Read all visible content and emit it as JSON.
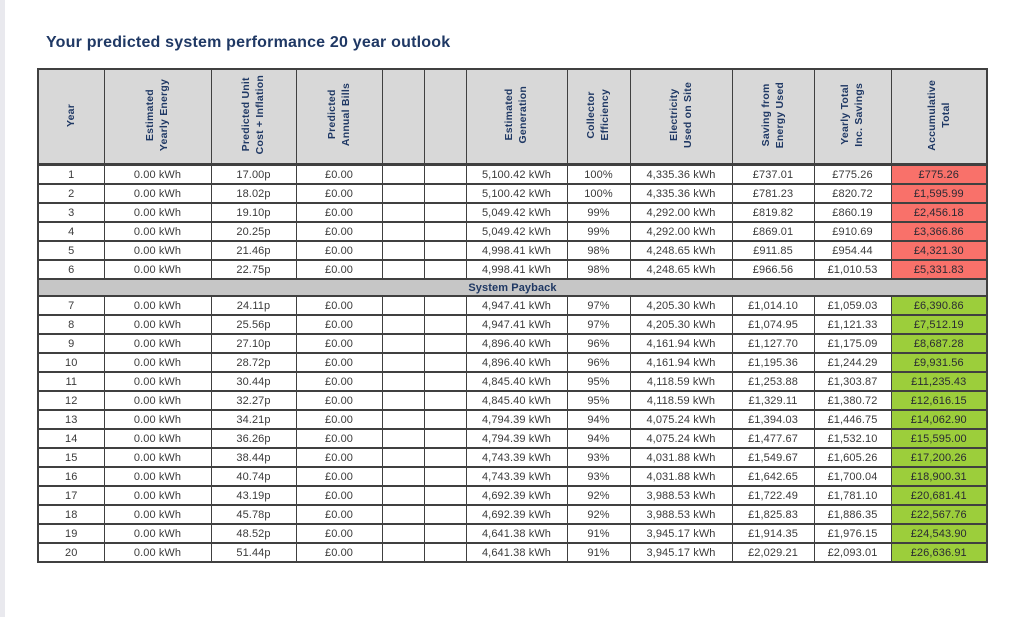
{
  "page": {
    "title": "Your predicted system performance 20 year outlook"
  },
  "colors": {
    "accent_navy": "#1f3864",
    "header_bg": "#d8d8d8",
    "payback_bg": "#c6c6c6",
    "negative_bg": "#f9716a",
    "positive_bg": "#9cce3b",
    "grid": "#404040"
  },
  "table": {
    "columns": [
      {
        "key": "year",
        "label": "Year"
      },
      {
        "key": "estimated-yearly-energy",
        "label": "Estimated\nYearly Energy"
      },
      {
        "key": "predicted-unit-cost-inflation",
        "label": "Predicted Unit\nCost + Inflation"
      },
      {
        "key": "predicted-annual-bills",
        "label": "Predicted\nAnnual Bills"
      },
      {
        "key": "spacer-1",
        "label": ""
      },
      {
        "key": "spacer-2",
        "label": ""
      },
      {
        "key": "estimated-generation",
        "label": "Estimated\nGeneration"
      },
      {
        "key": "collector-efficiency",
        "label": "Collector\nEfficiency"
      },
      {
        "key": "electricity-used-on-site",
        "label": "Electricity\nUsed on Site"
      },
      {
        "key": "saving-from-energy-used",
        "label": "Saving from\nEnergy Used"
      },
      {
        "key": "yearly-total-inc-savings",
        "label": "Yearly Total\nInc. Savings"
      },
      {
        "key": "accumulative-total",
        "label": "Accumulative\nTotal"
      }
    ],
    "payback_label": "System Payback",
    "payback_after_rows": 6,
    "rows": [
      {
        "status": "negative",
        "cells": [
          "1",
          "0.00 kWh",
          "17.00p",
          "£0.00",
          "",
          "",
          "5,100.42 kWh",
          "100%",
          "4,335.36 kWh",
          "£737.01",
          "£775.26",
          "£775.26"
        ]
      },
      {
        "status": "negative",
        "cells": [
          "2",
          "0.00 kWh",
          "18.02p",
          "£0.00",
          "",
          "",
          "5,100.42 kWh",
          "100%",
          "4,335.36 kWh",
          "£781.23",
          "£820.72",
          "£1,595.99"
        ]
      },
      {
        "status": "negative",
        "cells": [
          "3",
          "0.00 kWh",
          "19.10p",
          "£0.00",
          "",
          "",
          "5,049.42 kWh",
          "99%",
          "4,292.00 kWh",
          "£819.82",
          "£860.19",
          "£2,456.18"
        ]
      },
      {
        "status": "negative",
        "cells": [
          "4",
          "0.00 kWh",
          "20.25p",
          "£0.00",
          "",
          "",
          "5,049.42 kWh",
          "99%",
          "4,292.00 kWh",
          "£869.01",
          "£910.69",
          "£3,366.86"
        ]
      },
      {
        "status": "negative",
        "cells": [
          "5",
          "0.00 kWh",
          "21.46p",
          "£0.00",
          "",
          "",
          "4,998.41 kWh",
          "98%",
          "4,248.65 kWh",
          "£911.85",
          "£954.44",
          "£4,321.30"
        ]
      },
      {
        "status": "negative",
        "cells": [
          "6",
          "0.00 kWh",
          "22.75p",
          "£0.00",
          "",
          "",
          "4,998.41 kWh",
          "98%",
          "4,248.65 kWh",
          "£966.56",
          "£1,010.53",
          "£5,331.83"
        ]
      },
      {
        "status": "positive",
        "cells": [
          "7",
          "0.00 kWh",
          "24.11p",
          "£0.00",
          "",
          "",
          "4,947.41 kWh",
          "97%",
          "4,205.30 kWh",
          "£1,014.10",
          "£1,059.03",
          "£6,390.86"
        ]
      },
      {
        "status": "positive",
        "cells": [
          "8",
          "0.00 kWh",
          "25.56p",
          "£0.00",
          "",
          "",
          "4,947.41 kWh",
          "97%",
          "4,205.30 kWh",
          "£1,074.95",
          "£1,121.33",
          "£7,512.19"
        ]
      },
      {
        "status": "positive",
        "cells": [
          "9",
          "0.00 kWh",
          "27.10p",
          "£0.00",
          "",
          "",
          "4,896.40 kWh",
          "96%",
          "4,161.94 kWh",
          "£1,127.70",
          "£1,175.09",
          "£8,687.28"
        ]
      },
      {
        "status": "positive",
        "cells": [
          "10",
          "0.00 kWh",
          "28.72p",
          "£0.00",
          "",
          "",
          "4,896.40 kWh",
          "96%",
          "4,161.94 kWh",
          "£1,195.36",
          "£1,244.29",
          "£9,931.56"
        ]
      },
      {
        "status": "positive",
        "cells": [
          "11",
          "0.00 kWh",
          "30.44p",
          "£0.00",
          "",
          "",
          "4,845.40 kWh",
          "95%",
          "4,118.59 kWh",
          "£1,253.88",
          "£1,303.87",
          "£11,235.43"
        ]
      },
      {
        "status": "positive",
        "cells": [
          "12",
          "0.00 kWh",
          "32.27p",
          "£0.00",
          "",
          "",
          "4,845.40 kWh",
          "95%",
          "4,118.59 kWh",
          "£1,329.11",
          "£1,380.72",
          "£12,616.15"
        ]
      },
      {
        "status": "positive",
        "cells": [
          "13",
          "0.00 kWh",
          "34.21p",
          "£0.00",
          "",
          "",
          "4,794.39 kWh",
          "94%",
          "4,075.24 kWh",
          "£1,394.03",
          "£1,446.75",
          "£14,062.90"
        ]
      },
      {
        "status": "positive",
        "cells": [
          "14",
          "0.00 kWh",
          "36.26p",
          "£0.00",
          "",
          "",
          "4,794.39 kWh",
          "94%",
          "4,075.24 kWh",
          "£1,477.67",
          "£1,532.10",
          "£15,595.00"
        ]
      },
      {
        "status": "positive",
        "cells": [
          "15",
          "0.00 kWh",
          "38.44p",
          "£0.00",
          "",
          "",
          "4,743.39 kWh",
          "93%",
          "4,031.88 kWh",
          "£1,549.67",
          "£1,605.26",
          "£17,200.26"
        ]
      },
      {
        "status": "positive",
        "cells": [
          "16",
          "0.00 kWh",
          "40.74p",
          "£0.00",
          "",
          "",
          "4,743.39 kWh",
          "93%",
          "4,031.88 kWh",
          "£1,642.65",
          "£1,700.04",
          "£18,900.31"
        ]
      },
      {
        "status": "positive",
        "cells": [
          "17",
          "0.00 kWh",
          "43.19p",
          "£0.00",
          "",
          "",
          "4,692.39 kWh",
          "92%",
          "3,988.53 kWh",
          "£1,722.49",
          "£1,781.10",
          "£20,681.41"
        ]
      },
      {
        "status": "positive",
        "cells": [
          "18",
          "0.00 kWh",
          "45.78p",
          "£0.00",
          "",
          "",
          "4,692.39 kWh",
          "92%",
          "3,988.53 kWh",
          "£1,825.83",
          "£1,886.35",
          "£22,567.76"
        ]
      },
      {
        "status": "positive",
        "cells": [
          "19",
          "0.00 kWh",
          "48.52p",
          "£0.00",
          "",
          "",
          "4,641.38 kWh",
          "91%",
          "3,945.17 kWh",
          "£1,914.35",
          "£1,976.15",
          "£24,543.90"
        ]
      },
      {
        "status": "positive",
        "cells": [
          "20",
          "0.00 kWh",
          "51.44p",
          "£0.00",
          "",
          "",
          "4,641.38 kWh",
          "91%",
          "3,945.17 kWh",
          "£2,029.21",
          "£2,093.01",
          "£26,636.91"
        ]
      }
    ]
  }
}
